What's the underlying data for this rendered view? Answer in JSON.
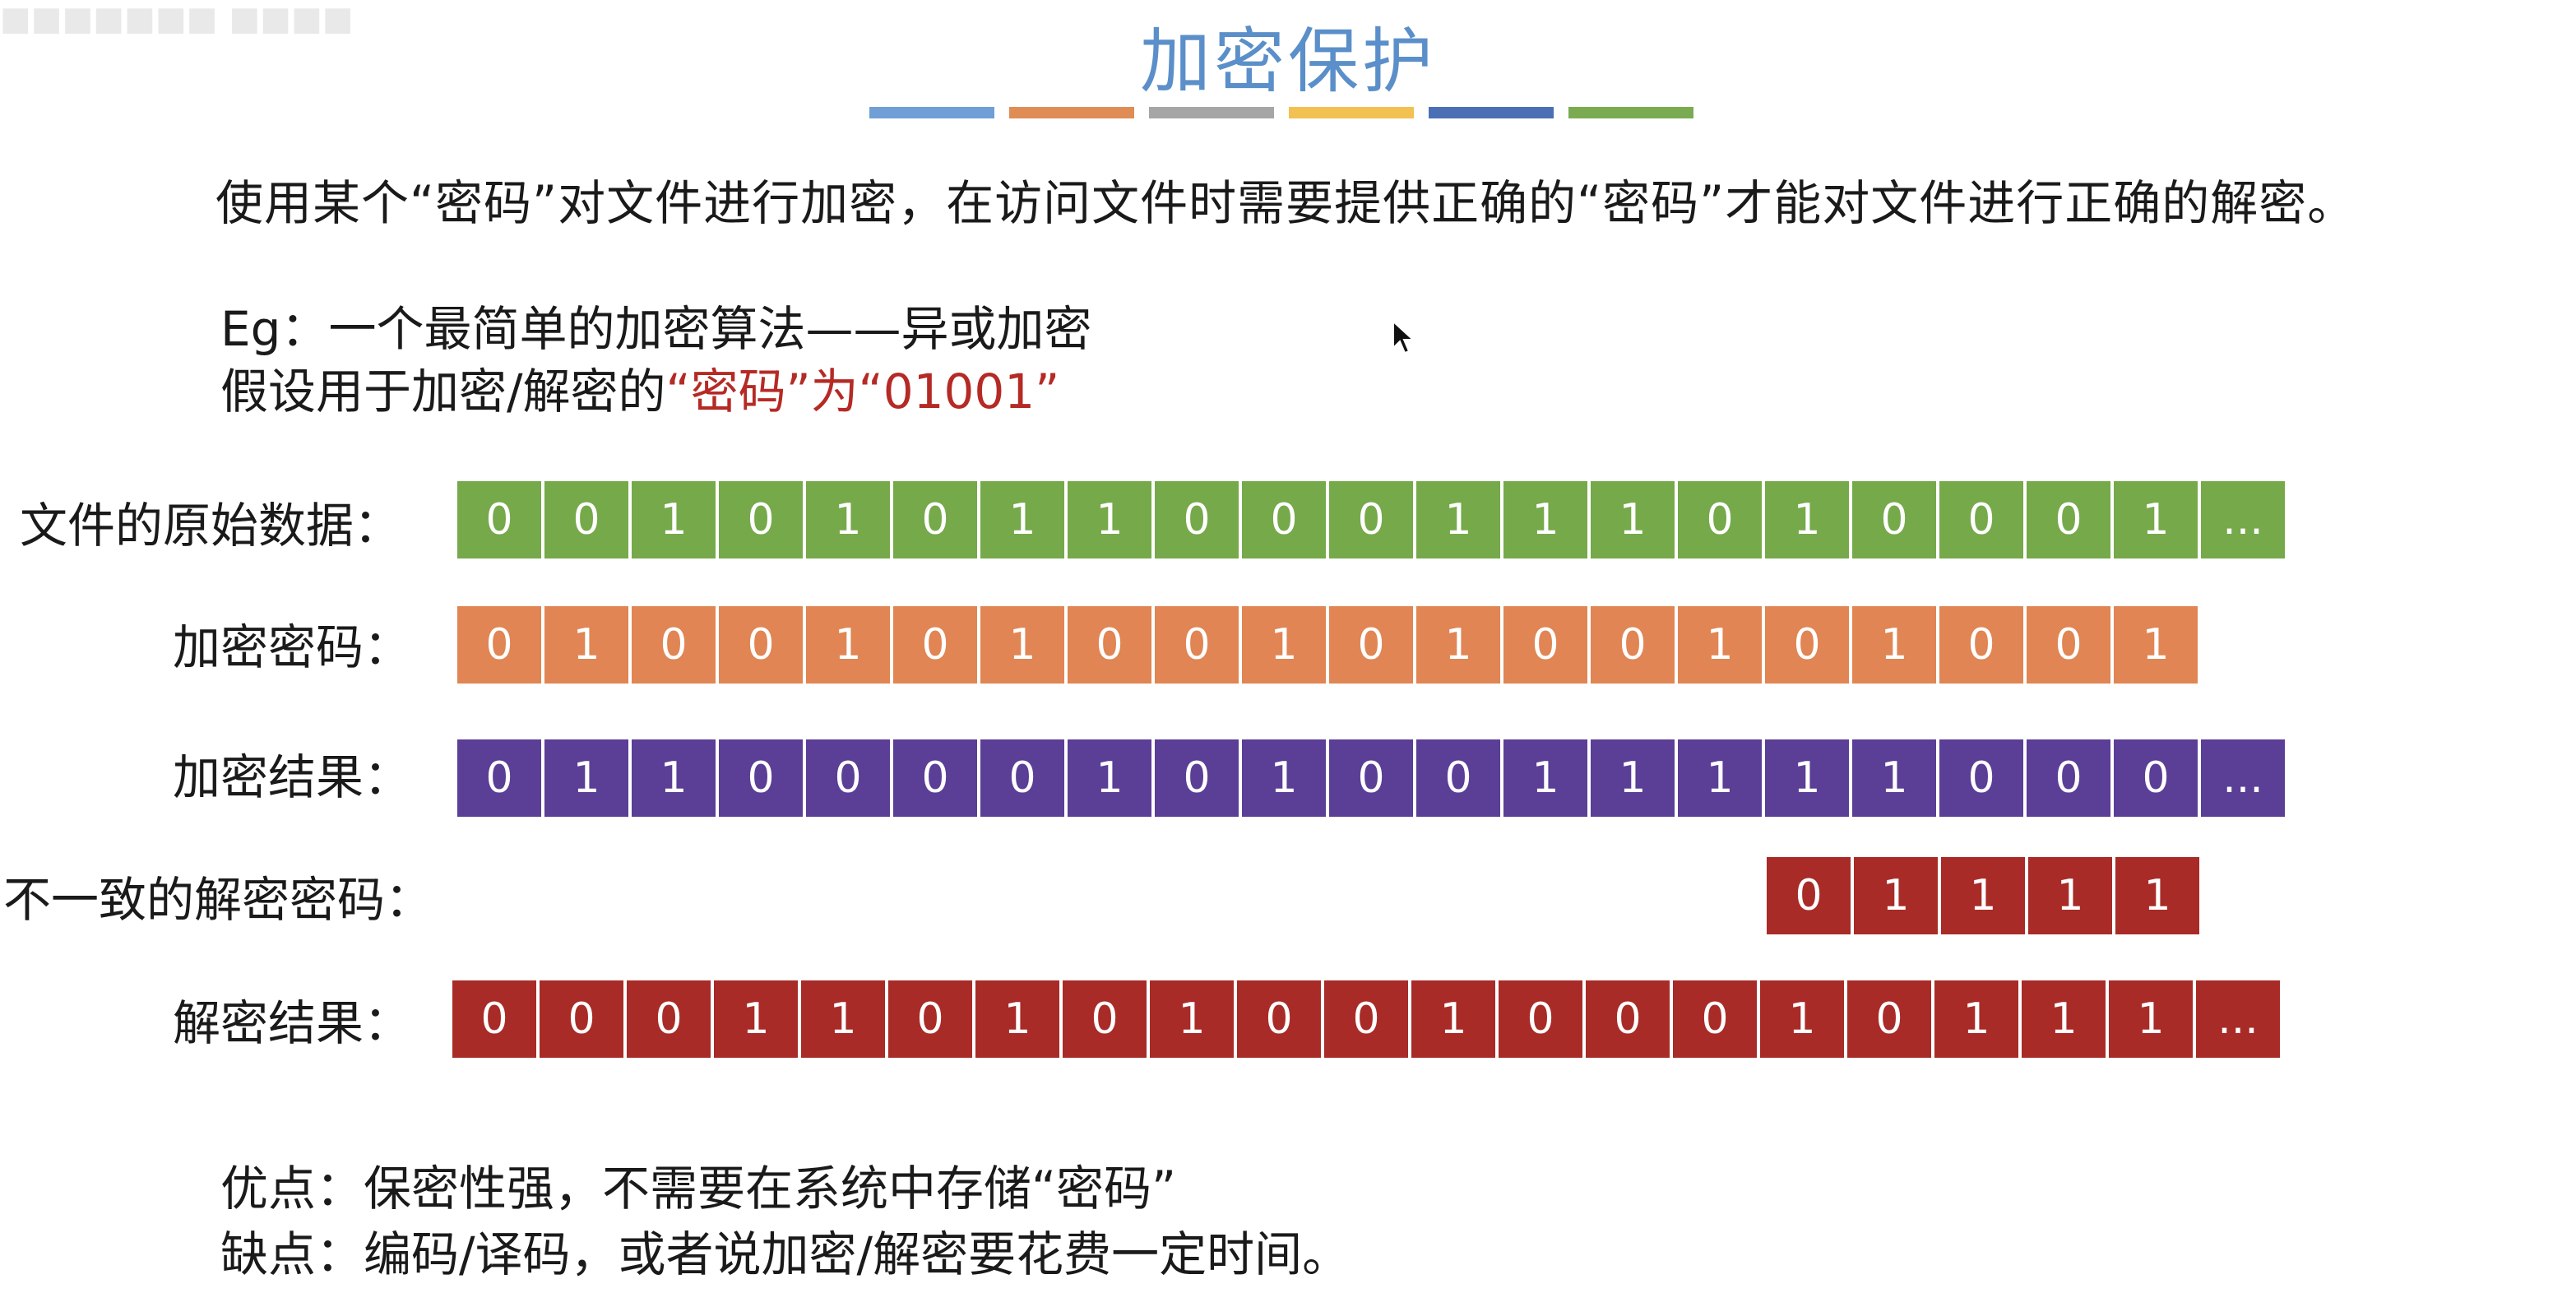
{
  "title": "加密保护",
  "title_bar_colors": [
    "#6f9fd6",
    "#e08c55",
    "#a6a6a6",
    "#f2c150",
    "#4a6fb5",
    "#7aab50"
  ],
  "intro": "使用某个“密码”对文件进行加密，在访问文件时需要提供正确的“密码”才能对文件进行正确的解密。",
  "example": {
    "line1": "Eg：一个最简单的加密算法——异或加密",
    "line2_prefix": "假设用于加密/解密的",
    "line2_highlight": "“密码”为“01001”"
  },
  "rows": [
    {
      "label": "文件的原始数据：",
      "color": "#76a94a",
      "cells": [
        "0",
        "0",
        "1",
        "0",
        "1",
        "0",
        "1",
        "1",
        "0",
        "0",
        "0",
        "1",
        "1",
        "1",
        "0",
        "1",
        "0",
        "0",
        "0",
        "1",
        "..."
      ]
    },
    {
      "label": "加密密码：",
      "color": "#e08553",
      "cells": [
        "0",
        "1",
        "0",
        "0",
        "1",
        "0",
        "1",
        "0",
        "0",
        "1",
        "0",
        "1",
        "0",
        "0",
        "1",
        "0",
        "1",
        "0",
        "0",
        "1"
      ]
    },
    {
      "label": "加密结果：",
      "color": "#5b3e96",
      "cells": [
        "0",
        "1",
        "1",
        "0",
        "0",
        "0",
        "0",
        "1",
        "0",
        "1",
        "0",
        "0",
        "1",
        "1",
        "1",
        "1",
        "1",
        "0",
        "0",
        "0",
        "..."
      ]
    },
    {
      "label": "不一致的解密密码：",
      "color": "#a82b27",
      "cells": [
        "0",
        "1",
        "1",
        "1",
        "1"
      ]
    },
    {
      "label": "解密结果：",
      "color": "#a82b27",
      "cells": [
        "0",
        "0",
        "0",
        "1",
        "1",
        "0",
        "1",
        "0",
        "1",
        "0",
        "0",
        "1",
        "0",
        "0",
        "0",
        "1",
        "0",
        "1",
        "1",
        "1",
        "..."
      ]
    }
  ],
  "pros": "优点：保密性强，不需要在系统中存储“密码”",
  "cons": "缺点：编码/译码，或者说加密/解密要花费一定时间。"
}
